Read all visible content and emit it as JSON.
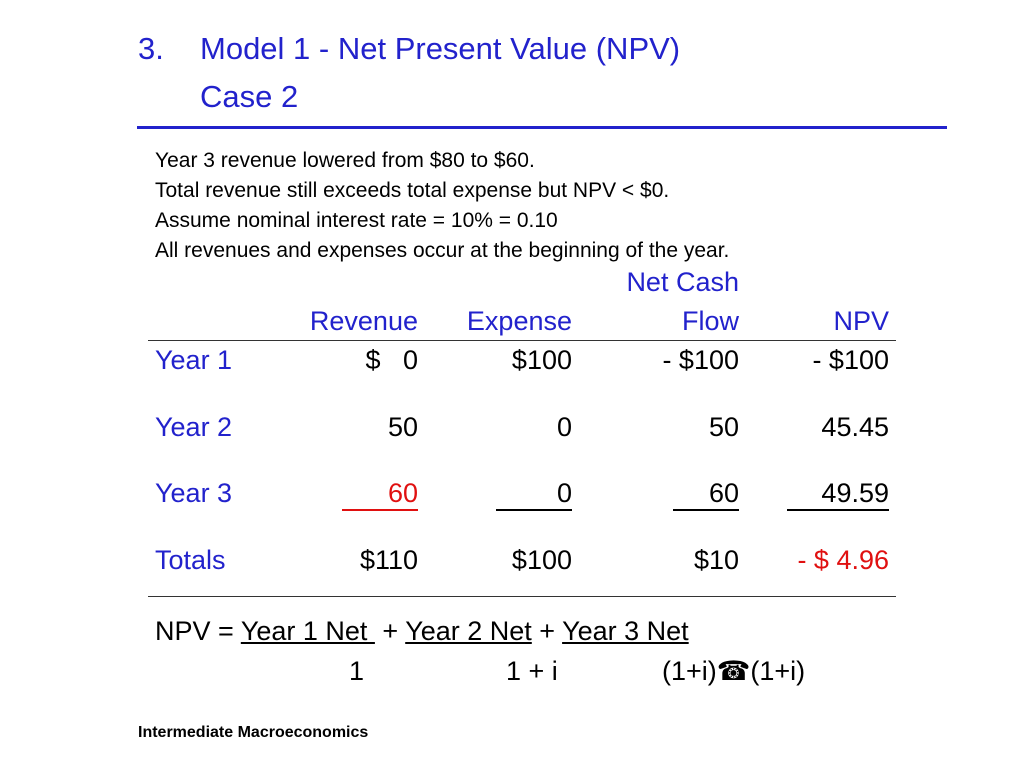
{
  "title": {
    "number": "3.",
    "line1": "Model 1 - Net Present Value (NPV)",
    "line2": "Case 2"
  },
  "notes": [
    "Year 3 revenue lowered from $80 to $60.",
    "Total revenue still exceeds total expense but NPV < $0.",
    "Assume nominal interest rate = 10% = 0.10",
    "All revenues and expenses occur at the beginning of the year."
  ],
  "table": {
    "headers": {
      "revenue": "Revenue",
      "expense": "Expense",
      "net_cash_flow_line1": "Net Cash",
      "net_cash_flow_line2": "Flow",
      "npv": "NPV"
    },
    "rows": [
      {
        "label": "Year 1",
        "revenue": "$   0",
        "expense": "$100",
        "net": "- $100",
        "npv": "- $100"
      },
      {
        "label": "Year 2",
        "revenue": "50",
        "expense": "0",
        "net": "50",
        "npv": "45.45"
      },
      {
        "label": "Year 3",
        "revenue": "60",
        "expense": "0",
        "net": "60",
        "npv": "49.59"
      },
      {
        "label": "Totals",
        "revenue": "$110",
        "expense": "$100",
        "net": "$10",
        "npv": "- $ 4.96"
      }
    ]
  },
  "formula": {
    "lhs": "NPV = ",
    "term1_num": "Year 1 Net ",
    "plus1": " + ",
    "term2_num": "Year 2 Net",
    "plus2": " + ",
    "term3_num": "Year 3 Net",
    "term1_den": "1",
    "term2_den": "1 + i",
    "term3_den_a": "(1+i)",
    "term3_den_symbol": "☎",
    "term3_den_b": "(1+i)"
  },
  "footer": "Intermediate Macroeconomics",
  "colors": {
    "title": "#2222cc",
    "highlight": "#e01010"
  }
}
